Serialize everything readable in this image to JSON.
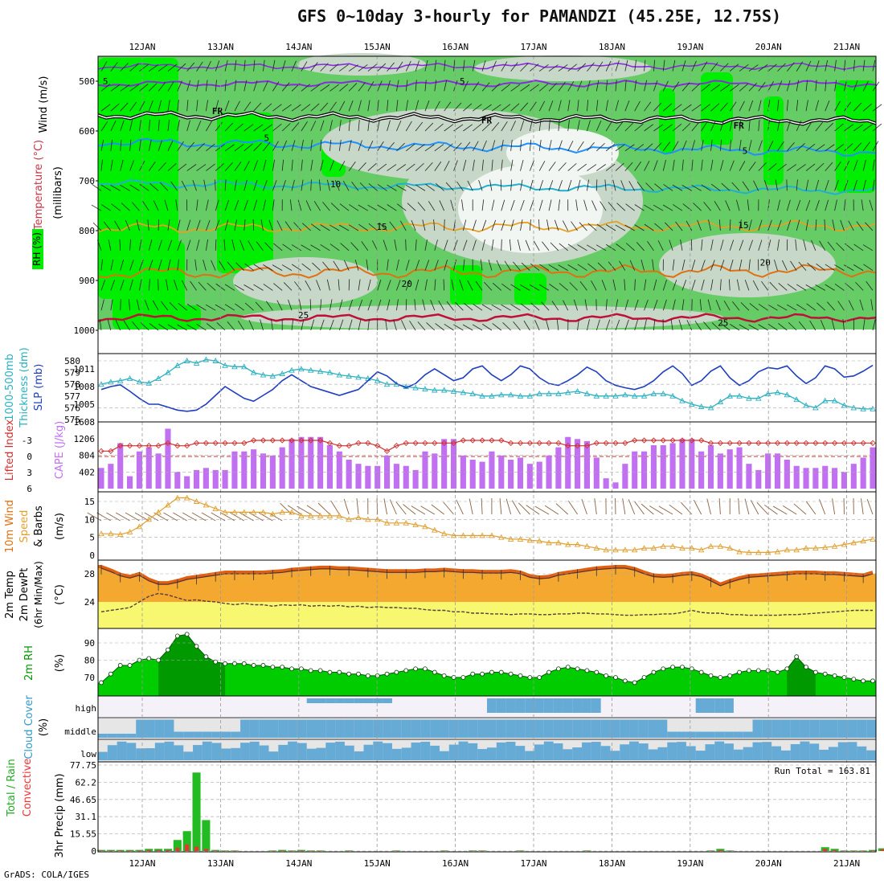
{
  "title": "GFS 0~10day 3-hourly for PAMANDZI (45.25E, 12.75S)",
  "credit": "GrADS: COLA/IGES",
  "colors": {
    "rh_bright": "#00ee00",
    "rh_mid": "#66cc66",
    "rh_light": "#c8d8c8",
    "rh_white": "#f2f6f2",
    "slp": "#1f3fbf",
    "thickness": "#2ab0c0",
    "cape": "#c070f0",
    "lifted": "#d03030",
    "wind_speed": "#e0a030",
    "barb": "#8b6040",
    "temp_fill": "#f4a830",
    "temp_top": "#e06010",
    "dew_fill": "#f8f870",
    "rh2m": "#00cc00",
    "rh2m_dark": "#009900",
    "cloud": "#66aad6",
    "cloud_bg": "#e6e6e6",
    "precip_total": "#22bb22",
    "precip_conv": "#ee3333"
  },
  "chart_data": [
    {
      "type": "area",
      "panel": "upper-air",
      "ylabel_a": "Wind (m/s)",
      "ylabel_b": "Temperature (°C)",
      "ylabel_c": "(millibars)",
      "ylabel_d": "RH (%)",
      "y_ticks": [
        500,
        600,
        700,
        800,
        900,
        1000
      ],
      "ylim": [
        450,
        1010
      ],
      "x_labels": [
        "12JAN",
        "13JAN",
        "14JAN",
        "15JAN",
        "16JAN",
        "17JAN",
        "18JAN",
        "19JAN",
        "20JAN",
        "21JAN"
      ],
      "x_range_days": [
        11.47,
        21.3
      ],
      "isotherm_labels": [
        {
          "text": "5",
          "x": 11.53,
          "y": 498
        },
        {
          "text": "5",
          "x": 16.09,
          "y": 498
        },
        {
          "text": "FR",
          "x": 12.96,
          "y": 558
        },
        {
          "text": "FR",
          "x": 16.4,
          "y": 577
        },
        {
          "text": "FR",
          "x": 19.62,
          "y": 587
        },
        {
          "text": "5",
          "x": 13.59,
          "y": 612
        },
        {
          "text": "5",
          "x": 19.7,
          "y": 638
        },
        {
          "text": "10",
          "x": 14.47,
          "y": 705
        },
        {
          "text": "15",
          "x": 15.06,
          "y": 790
        },
        {
          "text": "15",
          "x": 19.68,
          "y": 787
        },
        {
          "text": "20",
          "x": 19.96,
          "y": 862
        },
        {
          "text": "20",
          "x": 15.38,
          "y": 905
        },
        {
          "text": "25",
          "x": 14.06,
          "y": 968
        },
        {
          "text": "25",
          "x": 19.42,
          "y": 983
        }
      ]
    },
    {
      "type": "line",
      "panel": "slp-thickness",
      "ylabel_a": "1000-500mb",
      "ylabel_b": "Thickness (dm)",
      "ylabel_c": "SLP (mb)",
      "thickness_ticks": [
        575,
        576,
        577,
        578,
        579,
        580
      ],
      "slp_ticks": [
        1005,
        1008,
        1011
      ],
      "slp_top_label": "1608",
      "series": [
        {
          "name": "SLP",
          "values": [
            1007.5,
            1008,
            1008.3,
            1007.2,
            1006,
            1005,
            1005,
            1004.5,
            1004,
            1003.8,
            1004,
            1005,
            1006.5,
            1008,
            1007,
            1006,
            1005.5,
            1006.5,
            1007.5,
            1009,
            1010,
            1009,
            1008,
            1007.5,
            1007,
            1006.5,
            1007,
            1007.5,
            1009,
            1010.5,
            1009.8,
            1008.5,
            1007.8,
            1008.5,
            1010,
            1011,
            1010,
            1009,
            1009.5,
            1011,
            1011.5,
            1010,
            1009,
            1010,
            1011.5,
            1011,
            1009.5,
            1008.5,
            1008.2,
            1009,
            1010,
            1011.3,
            1010.5,
            1009,
            1008.2,
            1007.8,
            1007.5,
            1008,
            1009,
            1010.5,
            1011.5,
            1010.2,
            1008.2,
            1009,
            1010.6,
            1011.5,
            1009.5,
            1008.2,
            1009,
            1010.5,
            1011.2,
            1011,
            1011.5,
            1009.8,
            1008.5,
            1009.5,
            1011.5,
            1011,
            1009.6,
            1009.8,
            1010.6,
            1011.6
          ]
        },
        {
          "name": "Thickness",
          "values": [
            578,
            578.2,
            578.3,
            578.5,
            578.2,
            578.1,
            578.5,
            579,
            579.6,
            580,
            579.8,
            580.1,
            580,
            579.6,
            579.5,
            579.5,
            579,
            578.8,
            578.7,
            578.9,
            579.2,
            579.3,
            579.2,
            579.1,
            579,
            578.8,
            578.7,
            578.6,
            578.5,
            578.3,
            578,
            578,
            577.8,
            577.7,
            577.6,
            577.5,
            577.5,
            577.4,
            577.3,
            577.2,
            577,
            577,
            577.1,
            577.1,
            577,
            577,
            577.2,
            577.2,
            577.2,
            577.3,
            577.4,
            577.2,
            577,
            577,
            577,
            577.1,
            577,
            577,
            577.2,
            577.2,
            577,
            576.6,
            576.3,
            576.1,
            576,
            576.5,
            577,
            577,
            576.8,
            576.8,
            577.2,
            577.3,
            577.1,
            576.7,
            576.2,
            576,
            576.6,
            576.6,
            576.2,
            576,
            575.9,
            575.9
          ]
        }
      ]
    },
    {
      "type": "bar",
      "panel": "cape-lifted",
      "ylabel_a": "Lifted Index",
      "ylabel_b": "CAPE (J/kg)",
      "li_ticks": [
        -3,
        0,
        3,
        6
      ],
      "cape_ticks": [
        402,
        804,
        1206
      ],
      "cape_max": 1600,
      "series": [
        {
          "name": "CAPE",
          "values": [
            500,
            600,
            1100,
            300,
            900,
            1000,
            850,
            1450,
            400,
            300,
            450,
            500,
            450,
            450,
            900,
            900,
            950,
            850,
            800,
            1000,
            1200,
            1250,
            1250,
            1250,
            1050,
            900,
            700,
            600,
            550,
            550,
            800,
            600,
            550,
            450,
            900,
            850,
            1200,
            1200,
            800,
            700,
            650,
            900,
            800,
            700,
            750,
            600,
            650,
            800,
            1000,
            1250,
            1200,
            1150,
            750,
            250,
            150,
            600,
            900,
            900,
            1050,
            1050,
            1100,
            1200,
            1200,
            900,
            1050,
            850,
            950,
            1000,
            600,
            450,
            850,
            850,
            700,
            550,
            500,
            500,
            550,
            500,
            400,
            600,
            750,
            1000
          ]
        },
        {
          "name": "Lifted Index",
          "values": [
            -1,
            -1,
            -2,
            -2,
            -2,
            -2,
            -2,
            -2.5,
            -2,
            -2,
            -2.5,
            -2.5,
            -2.5,
            -2.5,
            -2.5,
            -2.5,
            -3,
            -3,
            -3,
            -3,
            -3,
            -3,
            -3,
            -3,
            -2.5,
            -2,
            -2,
            -2.5,
            -2.5,
            -2,
            -1,
            -2,
            -2.5,
            -2.5,
            -2.5,
            -2.5,
            -2.5,
            -2.5,
            -3,
            -3,
            -3,
            -3,
            -3,
            -2.5,
            -2.5,
            -2.5,
            -2.5,
            -2.5,
            -2.5,
            -2,
            -2,
            -2,
            -2.5,
            -2.5,
            -2.5,
            -2.5,
            -3,
            -3,
            -3,
            -3,
            -3,
            -3,
            -3,
            -3,
            -2.5,
            -2.5,
            -2.5,
            -2.5,
            -2.5,
            -2.5,
            -2.5,
            -2.5,
            -2.5,
            -2.5,
            -2.5,
            -2.5,
            -2.5,
            -2.5,
            -2.5,
            -2.5,
            -2.5,
            -2.5
          ]
        }
      ]
    },
    {
      "type": "line",
      "panel": "wind10m",
      "ylabel_a": "10m Wind",
      "ylabel_b": "Speed",
      "ylabel_c": "& Barbs",
      "ylabel_d": "(m/s)",
      "y_ticks": [
        0,
        5,
        10,
        15
      ],
      "ylim": [
        0,
        17
      ],
      "series": [
        {
          "name": "Speed",
          "values": [
            6,
            6,
            5.8,
            6.5,
            8,
            10,
            12,
            14,
            16,
            16,
            15,
            14,
            13,
            12,
            12,
            12,
            12,
            12,
            11.5,
            12,
            12,
            11,
            11,
            11,
            11,
            11,
            10,
            10.5,
            10,
            10,
            9,
            9,
            9,
            8.5,
            8,
            7,
            6,
            5.5,
            5.5,
            5.5,
            5.5,
            5.5,
            5,
            4.5,
            4.5,
            4.2,
            4,
            3.5,
            3.5,
            3,
            3,
            2.5,
            2,
            1.5,
            1.5,
            1.5,
            1.5,
            2,
            2,
            2.5,
            2.5,
            2,
            2,
            1.5,
            2.5,
            2.5,
            2,
            1,
            0.8,
            0.8,
            0.8,
            1,
            1.5,
            1.5,
            2,
            2,
            2.2,
            2.5,
            3,
            3.5,
            4,
            4.5
          ]
        }
      ]
    },
    {
      "type": "area",
      "panel": "temp2m",
      "ylabel_a": "2m Temp",
      "ylabel_b": "2m DewPt",
      "ylabel_c": "(6hr Min/Max)",
      "ylabel_d": "(°C)",
      "y_ticks": [
        24,
        28
      ],
      "ylim": [
        21,
        30
      ],
      "series": [
        {
          "name": "Temp",
          "values": [
            28.8,
            28.3,
            27.7,
            27.4,
            27.8,
            27,
            26.5,
            26.5,
            26.8,
            27.2,
            27.4,
            27.6,
            27.8,
            28,
            28,
            28,
            28,
            28,
            28.1,
            28.2,
            28.4,
            28.5,
            28.6,
            28.7,
            28.7,
            28.6,
            28.6,
            28.5,
            28.4,
            28.3,
            28.2,
            28.2,
            28.2,
            28.2,
            28.3,
            28.3,
            28.4,
            28.3,
            28.2,
            28.2,
            28.1,
            28.1,
            28.1,
            28.2,
            28,
            27.5,
            27.3,
            27.4,
            27.8,
            28,
            28.2,
            28.4,
            28.6,
            28.7,
            28.8,
            28.8,
            28.5,
            28,
            27.6,
            27.5,
            27.6,
            27.8,
            27.9,
            27.6,
            27,
            26.3,
            26.8,
            27.2,
            27.5,
            27.6,
            27.7,
            27.8,
            27.9,
            28,
            28,
            28,
            27.9,
            27.9,
            27.8,
            27.7,
            27.6,
            28
          ]
        },
        {
          "name": "DewPt",
          "values": [
            22.6,
            22.8,
            23,
            23.2,
            24,
            24.8,
            25.2,
            25,
            24.6,
            24.2,
            24.3,
            24.1,
            24,
            23.8,
            23.6,
            23.8,
            23.6,
            23.6,
            23.4,
            23.6,
            23.5,
            23.6,
            23.4,
            23.5,
            23.4,
            23.5,
            23.3,
            23.4,
            23.2,
            23.3,
            23.2,
            23.2,
            23.1,
            23.1,
            22.9,
            22.8,
            22.8,
            22.6,
            22.6,
            22.4,
            22.4,
            22.3,
            22.3,
            22.2,
            22.3,
            22.3,
            22.2,
            22.2,
            22.3,
            22.3,
            22.4,
            22.4,
            22.3,
            22.3,
            22.2,
            22.1,
            22.1,
            22.2,
            22.2,
            22.3,
            22.3,
            22.5,
            22.8,
            22.5,
            22.4,
            22.4,
            22.2,
            22.2,
            22.1,
            22.1,
            22.1,
            22.1,
            22.2,
            22.2,
            22.3,
            22.4,
            22.5,
            22.6,
            22.7,
            22.8,
            22.8,
            22.8
          ]
        }
      ]
    },
    {
      "type": "area",
      "panel": "rh2m",
      "ylabel_a": "2m RH",
      "ylabel_b": "(%)",
      "y_ticks": [
        70,
        80,
        90
      ],
      "ylim": [
        62,
        99
      ],
      "series": [
        {
          "name": "RH",
          "values": [
            67,
            72,
            77,
            77,
            80,
            81,
            80,
            86,
            94,
            95,
            88,
            82,
            79,
            78,
            78,
            78,
            77,
            77,
            76,
            76,
            75,
            75,
            74,
            74,
            73,
            73,
            72,
            72,
            71,
            71,
            72,
            73,
            74,
            75,
            75,
            73,
            71,
            70,
            70,
            72,
            72,
            73,
            73,
            72,
            71,
            70,
            70,
            73,
            75,
            76,
            75,
            74,
            73,
            71,
            70,
            68,
            67,
            70,
            73,
            75,
            76,
            76,
            75,
            73,
            71,
            70,
            71,
            73,
            74,
            74,
            74,
            73,
            75,
            82,
            76,
            73,
            72,
            71,
            70,
            69,
            68,
            68,
            69,
            71,
            72,
            73,
            72
          ]
        }
      ]
    },
    {
      "type": "bar",
      "panel": "cloud",
      "ylabel_a": "Cloud Cover",
      "ylabel_b": "(%)",
      "layers": [
        "high",
        "middle",
        "low"
      ]
    },
    {
      "type": "bar",
      "panel": "precip",
      "ylabel_a": "Total / Rain",
      "ylabel_b": "Convective",
      "ylabel_c": "3hr Precip (mm)",
      "y_ticks": [
        0,
        15.55,
        31.1,
        46.65,
        62.2,
        77.75
      ],
      "ylim": [
        0,
        77.75
      ],
      "run_total_label": "Run Total = 163.81",
      "series": [
        {
          "name": "Total",
          "values": [
            1,
            1,
            1,
            1,
            1,
            2,
            2,
            2,
            10,
            18,
            71,
            28,
            1,
            0.5,
            0.5,
            0,
            0,
            0,
            0.5,
            1,
            0.5,
            1,
            0.5,
            0.5,
            0,
            0,
            0.5,
            0,
            0,
            0,
            0,
            0.5,
            0,
            0,
            0,
            0,
            0.5,
            0,
            0,
            0.5,
            0.5,
            0,
            0,
            0,
            0.5,
            0,
            0,
            0,
            0,
            0,
            0,
            0.5,
            0,
            0,
            0,
            0,
            0,
            0,
            0,
            0,
            0,
            0,
            0,
            0,
            0.5,
            2,
            0.5,
            0,
            0,
            0,
            0,
            0,
            0,
            0,
            0,
            0,
            3.5,
            2,
            0.5,
            0.5,
            0.5,
            1,
            2.5
          ]
        },
        {
          "name": "Convective",
          "values": [
            0.5,
            0.5,
            0.5,
            0.5,
            0.5,
            1,
            1,
            1,
            3,
            6,
            4,
            2,
            0.5,
            0.3,
            0.3,
            0,
            0,
            0,
            0.3,
            0.5,
            0.3,
            0.5,
            0.3,
            0.3,
            0,
            0,
            0.3,
            0,
            0,
            0,
            0,
            0.3,
            0,
            0,
            0,
            0,
            0.3,
            0,
            0,
            0.3,
            0.3,
            0,
            0,
            0,
            0.3,
            0,
            0,
            0,
            0,
            0,
            0,
            0.3,
            0,
            0,
            0,
            0,
            0,
            0,
            0,
            0,
            0,
            0,
            0,
            0,
            0.3,
            1,
            0.3,
            0,
            0,
            0,
            0,
            0,
            0,
            0,
            0,
            0,
            2,
            1,
            0.3,
            0.3,
            0.3,
            0.5,
            1.5
          ]
        }
      ]
    }
  ]
}
